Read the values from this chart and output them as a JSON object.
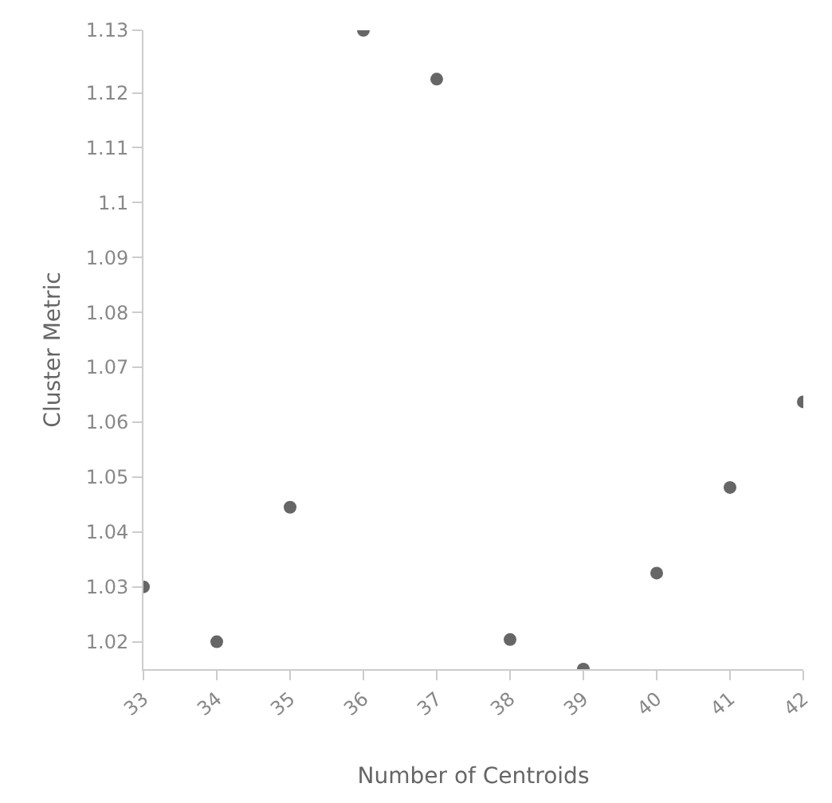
{
  "chart_data": {
    "type": "scatter",
    "xlabel": "Number of Centroids",
    "ylabel": "Cluster Metric",
    "x": [
      33,
      34,
      35,
      36,
      37,
      38,
      39,
      40,
      41,
      42
    ],
    "series": [
      {
        "color": "#666666",
        "values": [
          1.03,
          1.02,
          1.0445,
          1.1314,
          1.1225,
          1.0204,
          1.015,
          1.0325,
          1.0481,
          1.0637
        ]
      }
    ],
    "xlim": [
      33,
      42
    ],
    "xticks": [
      33,
      34,
      35,
      36,
      37,
      38,
      39,
      40,
      41,
      42
    ],
    "ylim": [
      1.015,
      1.1314
    ],
    "yticks": [
      1.02,
      1.03,
      1.04,
      1.05,
      1.06,
      1.07,
      1.08,
      1.09,
      1.1,
      1.11,
      1.12,
      {
        "value": 1.1314,
        "label": "1.13"
      }
    ],
    "marker": "circle"
  }
}
